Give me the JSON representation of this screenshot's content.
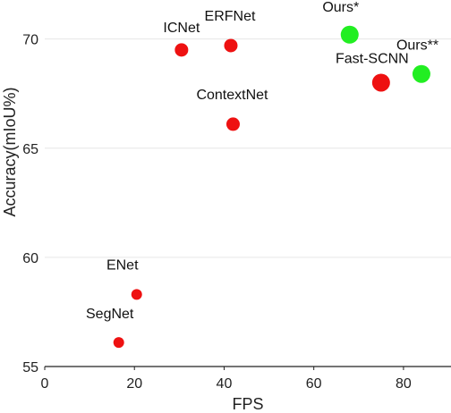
{
  "chart_data": {
    "type": "scatter",
    "xlabel": "FPS",
    "ylabel": "Accuracy(mIoU%)",
    "xlim": [
      0,
      88
    ],
    "ylim": [
      55,
      71.5
    ],
    "xticks": [
      0,
      20,
      40,
      60,
      80
    ],
    "yticks": [
      55,
      60,
      65,
      70
    ],
    "grid": "horizontal",
    "colors": {
      "baseline": "#ee1111",
      "ours": "#22ee22",
      "grid": "#e6e6e6",
      "axis": "#222222"
    },
    "points": [
      {
        "label": "ICNet",
        "x": 30.5,
        "y": 69.5,
        "group": "baseline",
        "size": "medium"
      },
      {
        "label": "ERFNet",
        "x": 41.5,
        "y": 69.7,
        "group": "baseline",
        "size": "medium"
      },
      {
        "label": "ContextNet",
        "x": 42,
        "y": 66.1,
        "group": "baseline",
        "size": "medium"
      },
      {
        "label": "Fast-SCNN",
        "x": 75,
        "y": 68,
        "group": "baseline",
        "size": "large"
      },
      {
        "label": "Ours*",
        "x": 68,
        "y": 70.2,
        "group": "ours",
        "size": "large"
      },
      {
        "label": "Ours**",
        "x": 84,
        "y": 68.4,
        "group": "ours",
        "size": "large"
      },
      {
        "label": "ENet",
        "x": 20.5,
        "y": 58.3,
        "group": "baseline",
        "size": "small"
      },
      {
        "label": "SegNet",
        "x": 16.5,
        "y": 56.1,
        "group": "baseline",
        "size": "small"
      }
    ]
  }
}
